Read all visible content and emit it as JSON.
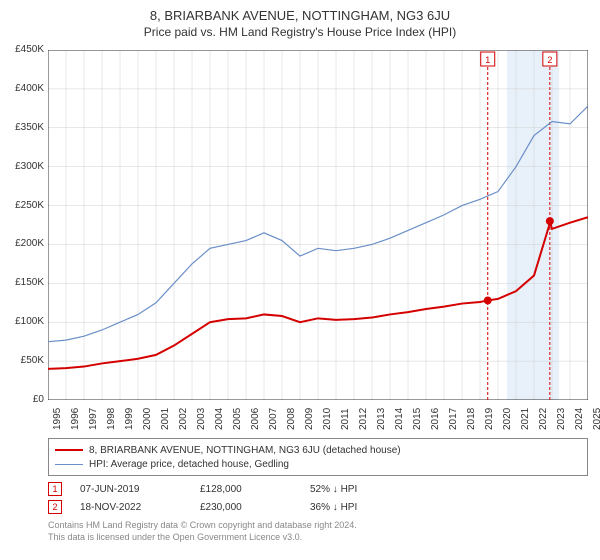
{
  "title": "8, BRIARBANK AVENUE, NOTTINGHAM, NG3 6JU",
  "subtitle": "Price paid vs. HM Land Registry's House Price Index (HPI)",
  "chart": {
    "background_color": "#ffffff",
    "grid_color": "#d0d0d0",
    "highlight_band_color": "#e8f0fa",
    "highlight_band_start_year": 2020.5,
    "highlight_band_end_year": 2023.4,
    "ylim": [
      0,
      450000
    ],
    "ytick_step": 50000,
    "yticks_labels": [
      "£0",
      "£50K",
      "£100K",
      "£150K",
      "£200K",
      "£250K",
      "£300K",
      "£350K",
      "£400K",
      "£450K"
    ],
    "xlim": [
      1995,
      2025
    ],
    "xticks": [
      1995,
      1996,
      1997,
      1998,
      1999,
      2000,
      2001,
      2002,
      2003,
      2004,
      2005,
      2006,
      2007,
      2008,
      2009,
      2010,
      2011,
      2012,
      2013,
      2014,
      2015,
      2016,
      2017,
      2018,
      2019,
      2020,
      2021,
      2022,
      2023,
      2024,
      2025
    ],
    "label_fontsize": 10,
    "series_property": {
      "color": "#d40000",
      "line_width": 2,
      "label": "8, BRIARBANK AVENUE, NOTTINGHAM, NG3 6JU (detached house)",
      "data": [
        [
          1995,
          40000
        ],
        [
          1996,
          41000
        ],
        [
          1997,
          43000
        ],
        [
          1998,
          47000
        ],
        [
          1999,
          50000
        ],
        [
          2000,
          53000
        ],
        [
          2001,
          58000
        ],
        [
          2002,
          70000
        ],
        [
          2003,
          85000
        ],
        [
          2004,
          100000
        ],
        [
          2005,
          104000
        ],
        [
          2006,
          105000
        ],
        [
          2007,
          110000
        ],
        [
          2008,
          108000
        ],
        [
          2009,
          100000
        ],
        [
          2010,
          105000
        ],
        [
          2011,
          103000
        ],
        [
          2012,
          104000
        ],
        [
          2013,
          106000
        ],
        [
          2014,
          110000
        ],
        [
          2015,
          113000
        ],
        [
          2016,
          117000
        ],
        [
          2017,
          120000
        ],
        [
          2018,
          124000
        ],
        [
          2019,
          126000
        ],
        [
          2019.43,
          128000
        ],
        [
          2020,
          130000
        ],
        [
          2021,
          140000
        ],
        [
          2022,
          160000
        ],
        [
          2022.85,
          225000
        ],
        [
          2022.88,
          230000
        ],
        [
          2023,
          220000
        ],
        [
          2024,
          228000
        ],
        [
          2025,
          235000
        ]
      ]
    },
    "series_hpi": {
      "color": "#6a8fc7",
      "line_width": 1.2,
      "label": "HPI: Average price, detached house, Gedling",
      "data": [
        [
          1995,
          75000
        ],
        [
          1996,
          77000
        ],
        [
          1997,
          82000
        ],
        [
          1998,
          90000
        ],
        [
          1999,
          100000
        ],
        [
          2000,
          110000
        ],
        [
          2001,
          125000
        ],
        [
          2002,
          150000
        ],
        [
          2003,
          175000
        ],
        [
          2004,
          195000
        ],
        [
          2005,
          200000
        ],
        [
          2006,
          205000
        ],
        [
          2007,
          215000
        ],
        [
          2008,
          205000
        ],
        [
          2009,
          185000
        ],
        [
          2010,
          195000
        ],
        [
          2011,
          192000
        ],
        [
          2012,
          195000
        ],
        [
          2013,
          200000
        ],
        [
          2014,
          208000
        ],
        [
          2015,
          218000
        ],
        [
          2016,
          228000
        ],
        [
          2017,
          238000
        ],
        [
          2018,
          250000
        ],
        [
          2019,
          258000
        ],
        [
          2020,
          268000
        ],
        [
          2021,
          300000
        ],
        [
          2022,
          340000
        ],
        [
          2023,
          358000
        ],
        [
          2024,
          355000
        ],
        [
          2025,
          378000
        ]
      ]
    },
    "events": [
      {
        "n": "1",
        "year": 2019.43,
        "value": 128000,
        "color": "#d40000"
      },
      {
        "n": "2",
        "year": 2022.88,
        "value": 230000,
        "color": "#d40000"
      }
    ],
    "event_markers_on_plot": [
      {
        "n": "1",
        "x": 2019.43,
        "top_y": 440000,
        "color": "#d40000"
      },
      {
        "n": "2",
        "x": 2022.88,
        "top_y": 440000,
        "color": "#d40000"
      }
    ]
  },
  "legend": {
    "items": [
      {
        "color": "#d40000",
        "label": "8, BRIARBANK AVENUE, NOTTINGHAM, NG3 6JU (detached house)"
      },
      {
        "color": "#6a8fc7",
        "label": "HPI: Average price, detached house, Gedling"
      }
    ]
  },
  "event_table": {
    "rows": [
      {
        "n": "1",
        "color": "#d40000",
        "date": "07-JUN-2019",
        "price": "£128,000",
        "delta": "52% ↓ HPI"
      },
      {
        "n": "2",
        "color": "#d40000",
        "date": "18-NOV-2022",
        "price": "£230,000",
        "delta": "36% ↓ HPI"
      }
    ]
  },
  "footer": {
    "line1": "Contains HM Land Registry data © Crown copyright and database right 2024.",
    "line2": "This data is licensed under the Open Government Licence v3.0."
  }
}
